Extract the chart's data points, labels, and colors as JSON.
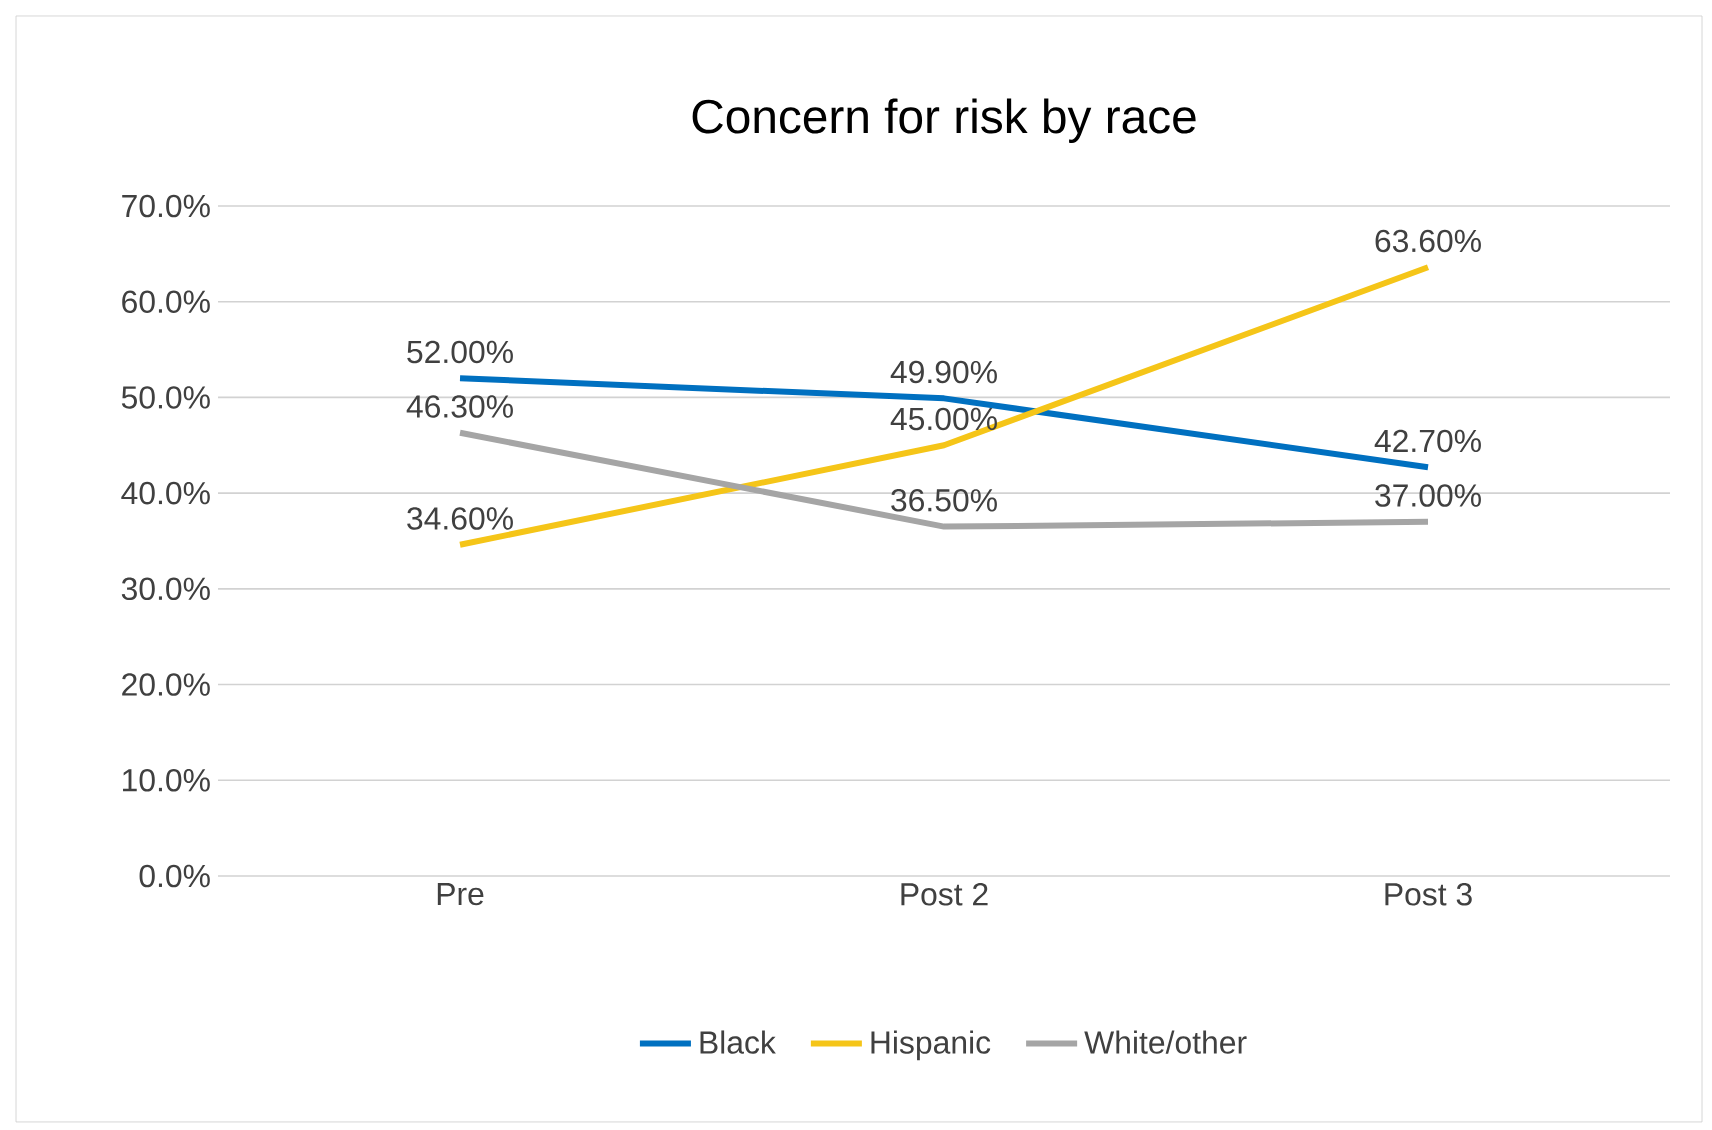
{
  "chart_data": {
    "type": "line",
    "title": "Concern for risk by race",
    "categories": [
      "Pre",
      "Post 2",
      "Post 3"
    ],
    "series": [
      {
        "name": "Black",
        "color": "#0070c0",
        "values": [
          52.0,
          49.9,
          42.7
        ],
        "value_labels": [
          "52.00%",
          "49.90%",
          "42.70%"
        ]
      },
      {
        "name": "Hispanic",
        "color": "#f5c518",
        "values": [
          34.6,
          45.0,
          63.6
        ],
        "value_labels": [
          "34.60%",
          "45.00%",
          "63.60%"
        ]
      },
      {
        "name": "White/other",
        "color": "#a5a5a5",
        "values": [
          46.3,
          36.5,
          37.0
        ],
        "value_labels": [
          "46.30%",
          "36.50%",
          "37.00%"
        ]
      }
    ],
    "ylim": [
      0,
      70
    ],
    "yticks": [
      {
        "value": 0,
        "label": "0.0%"
      },
      {
        "value": 10,
        "label": "10.0%"
      },
      {
        "value": 20,
        "label": "20.0%"
      },
      {
        "value": 30,
        "label": "30.0%"
      },
      {
        "value": 40,
        "label": "40.0%"
      },
      {
        "value": 50,
        "label": "50.0%"
      },
      {
        "value": 60,
        "label": "60.0%"
      },
      {
        "value": 70,
        "label": "70.0%"
      }
    ],
    "grid": "y",
    "legend": "bottom"
  }
}
